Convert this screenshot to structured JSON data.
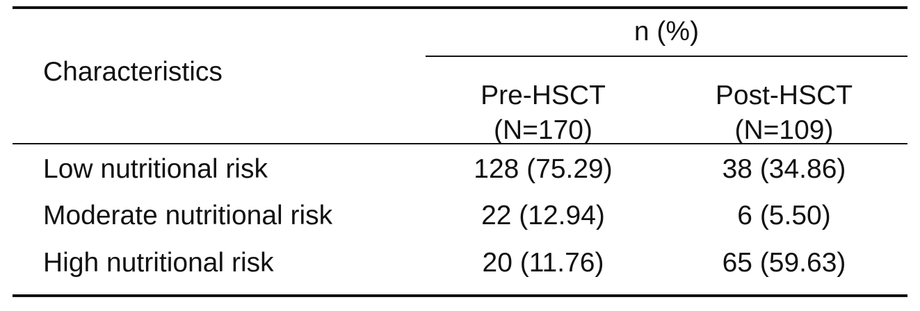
{
  "table": {
    "group_header": "n (%)",
    "characteristics_header": "Characteristics",
    "columns": [
      {
        "name": "Pre-HSCT",
        "n": "(N=170)"
      },
      {
        "name": "Post-HSCT",
        "n": "(N=109)"
      }
    ],
    "rows": [
      {
        "label": "Low nutritional risk",
        "pre": "128 (75.29)",
        "post": "38 (34.86)"
      },
      {
        "label": "Moderate nutritional risk",
        "pre": "22 (12.94)",
        "post": "6 (5.50)"
      },
      {
        "label": "High nutritional risk",
        "pre": "20 (11.76)",
        "post": "65 (59.63)"
      }
    ]
  }
}
